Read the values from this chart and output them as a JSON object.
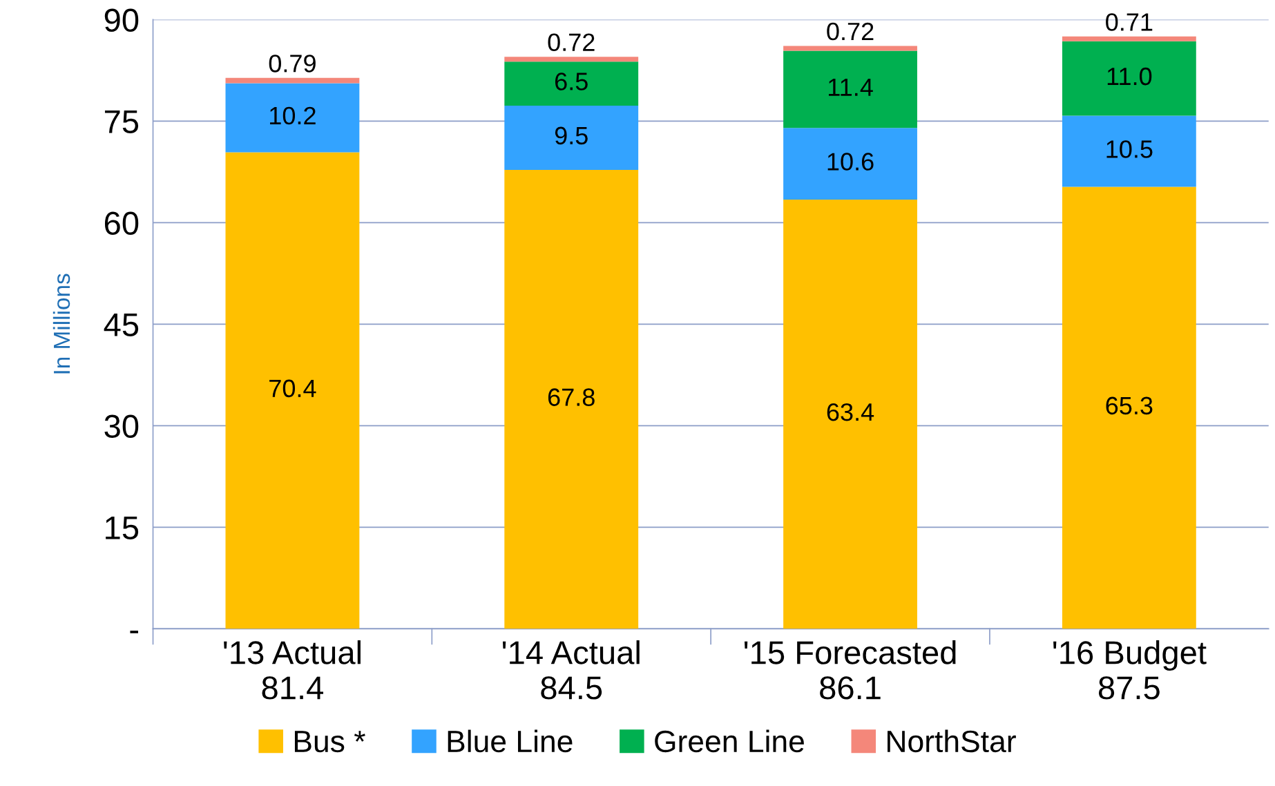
{
  "chart_data": {
    "type": "bar",
    "stacked": true,
    "ylabel": "In Millions",
    "categories": [
      "'13 Actual\n81.4",
      "'14 Actual\n84.5",
      "'15 Forecasted\n86.1",
      "'16 Budget\n87.5"
    ],
    "series": [
      {
        "name": "Bus *",
        "color": "#ffc000",
        "values": [
          70.4,
          67.8,
          63.4,
          65.3
        ],
        "value_labels": [
          "70.4",
          "67.8",
          "63.4",
          "65.3"
        ]
      },
      {
        "name": "Blue Line",
        "color": "#33a3ff",
        "values": [
          10.2,
          9.5,
          10.6,
          10.5
        ],
        "value_labels": [
          "10.2",
          "9.5",
          "10.6",
          "10.5"
        ]
      },
      {
        "name": "Green Line",
        "color": "#00b050",
        "values": [
          null,
          6.5,
          11.4,
          11.0
        ],
        "value_labels": [
          null,
          "6.5",
          "11.4",
          "11.0"
        ]
      },
      {
        "name": "NorthStar",
        "color": "#f4877a",
        "values": [
          0.79,
          0.72,
          0.72,
          0.71
        ],
        "value_labels": [
          "0.79",
          "0.72",
          "0.72",
          "0.71"
        ]
      }
    ],
    "ylim": [
      0,
      90
    ],
    "yticks": [
      {
        "value": 0,
        "label": "-"
      },
      15,
      30,
      45,
      60,
      75,
      90
    ],
    "grid": "y",
    "legend": "bottom"
  }
}
